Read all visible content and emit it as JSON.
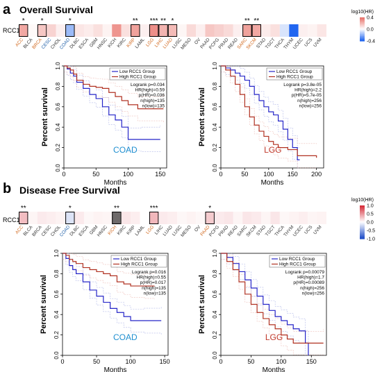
{
  "panels": [
    {
      "letter": "a",
      "title": "Overall Survival",
      "row_label": "RCC1",
      "legend": {
        "title": "log10(HR)",
        "ticks": [
          "0.4",
          "0.0",
          "-0.4"
        ],
        "colors": {
          "high": "#e8736b",
          "mid": "#ffffff",
          "low": "#2166f0"
        }
      },
      "cancers": [
        "ACC",
        "BLCA",
        "BRCA",
        "CESC",
        "CHOL",
        "COAD",
        "DLBC",
        "ESCA",
        "GBM",
        "HNSC",
        "KICH",
        "KIRC",
        "KIRP",
        "LAML",
        "LGG",
        "LIHC",
        "LUAD",
        "LUSC",
        "MESO",
        "OV",
        "PAAD",
        "PCPG",
        "PRAD",
        "READ",
        "SARC",
        "SKCM",
        "STAD",
        "TGCT",
        "THCA",
        "THYM",
        "UCEC",
        "UCS",
        "UVM"
      ],
      "log10_hr": [
        0.28,
        0.02,
        0.18,
        0.14,
        0.05,
        -0.2,
        0.08,
        0.06,
        0.1,
        0.04,
        0.34,
        0.1,
        0.3,
        0.05,
        0.36,
        0.24,
        0.22,
        0.03,
        0.12,
        0.05,
        0.18,
        0.15,
        0.12,
        0.05,
        0.3,
        0.28,
        0.06,
        0.1,
        -0.08,
        -0.45,
        0.05,
        0.04,
        0.08
      ],
      "stars": [
        "*",
        "",
        "*",
        "",
        "",
        "*",
        "",
        "",
        "",
        "",
        "",
        "",
        "**",
        "",
        "***",
        "**",
        "*",
        "",
        "",
        "",
        "",
        "",
        "",
        "",
        "**",
        "**",
        "",
        "",
        "",
        "",
        "",
        "",
        ""
      ],
      "boxed": [
        "ACC",
        "BRCA",
        "COAD",
        "KIRP",
        "LGG",
        "LIHC",
        "LUAD",
        "SARC",
        "SKCM"
      ],
      "orange_labels": [
        "ACC",
        "BRCA",
        "KIRP",
        "LGG",
        "LIHC",
        "LUAD",
        "SARC",
        "SKCM"
      ],
      "blue_labels": [
        "CESC",
        "COAD"
      ],
      "km": [
        {
          "cancer": "COAD",
          "legend_low": "Low RCC1 Group",
          "legend_high": "High RCC1 Group",
          "stats": [
            "Logrank p=0.034",
            "HR(high)=0.59",
            "p(HR)=0.036",
            "n(high)=135",
            "n(low)=135"
          ],
          "xlabel": "Months",
          "ylabel": "Percent survival",
          "xticks": [
            0,
            50,
            100,
            150
          ],
          "yticks": [
            0.0,
            0.2,
            0.4,
            0.6,
            0.8,
            1.0
          ],
          "xmax": 160,
          "low_curve": [
            [
              0,
              1
            ],
            [
              5,
              0.97
            ],
            [
              10,
              0.93
            ],
            [
              15,
              0.9
            ],
            [
              20,
              0.84
            ],
            [
              30,
              0.78
            ],
            [
              40,
              0.72
            ],
            [
              50,
              0.68
            ],
            [
              60,
              0.6
            ],
            [
              70,
              0.52
            ],
            [
              80,
              0.47
            ],
            [
              90,
              0.4
            ],
            [
              100,
              0.28
            ],
            [
              120,
              0.28
            ],
            [
              150,
              0.28
            ]
          ],
          "high_curve": [
            [
              0,
              1
            ],
            [
              5,
              0.98
            ],
            [
              10,
              0.96
            ],
            [
              15,
              0.92
            ],
            [
              20,
              0.86
            ],
            [
              30,
              0.82
            ],
            [
              40,
              0.8
            ],
            [
              50,
              0.79
            ],
            [
              60,
              0.78
            ],
            [
              70,
              0.74
            ],
            [
              80,
              0.7
            ],
            [
              90,
              0.66
            ],
            [
              100,
              0.62
            ],
            [
              115,
              0.58
            ],
            [
              155,
              0.58
            ]
          ]
        },
        {
          "cancer": "LGG",
          "legend_low": "Low RCC1 Group",
          "legend_high": "High RCC1 Group",
          "stats": [
            "Logrank p=3.8e-05",
            "HR(high)=2.2",
            "p(HR)=5.7e-05",
            "n(high)=256",
            "n(low)=256"
          ],
          "xlabel": "Months",
          "ylabel": "Percent survival",
          "xticks": [
            0,
            50,
            100,
            150,
            200
          ],
          "yticks": [
            0.0,
            0.2,
            0.4,
            0.6,
            0.8,
            1.0
          ],
          "xmax": 215,
          "low_curve": [
            [
              0,
              1
            ],
            [
              10,
              0.98
            ],
            [
              20,
              0.96
            ],
            [
              30,
              0.93
            ],
            [
              40,
              0.9
            ],
            [
              50,
              0.86
            ],
            [
              60,
              0.8
            ],
            [
              70,
              0.72
            ],
            [
              80,
              0.66
            ],
            [
              90,
              0.6
            ],
            [
              100,
              0.55
            ],
            [
              110,
              0.52
            ],
            [
              120,
              0.46
            ],
            [
              130,
              0.38
            ],
            [
              140,
              0.28
            ],
            [
              150,
              0.2
            ],
            [
              160,
              0.08
            ],
            [
              165,
              0.08
            ]
          ],
          "high_curve": [
            [
              0,
              1
            ],
            [
              10,
              0.96
            ],
            [
              20,
              0.9
            ],
            [
              30,
              0.82
            ],
            [
              40,
              0.72
            ],
            [
              50,
              0.6
            ],
            [
              60,
              0.5
            ],
            [
              70,
              0.42
            ],
            [
              80,
              0.36
            ],
            [
              90,
              0.31
            ],
            [
              100,
              0.26
            ],
            [
              110,
              0.23
            ],
            [
              120,
              0.2
            ],
            [
              140,
              0.18
            ],
            [
              160,
              0.12
            ],
            [
              200,
              0.1
            ]
          ]
        }
      ]
    },
    {
      "letter": "b",
      "title": "Disease Free Survival",
      "row_label": "RCC1",
      "legend": {
        "title": "log10(HR)",
        "ticks": [
          "1.0",
          "0.5",
          "0.0",
          "-0.5",
          "-1.0"
        ],
        "colors": {
          "high": "#d6303c",
          "mid": "#ffffff",
          "low": "#2250c8"
        }
      },
      "cancers": [
        "ACC",
        "BLCA",
        "BRCA",
        "CESC",
        "CHOL",
        "COAD",
        "DLBC",
        "ESCA",
        "GBM",
        "HNSC",
        "KICH",
        "KIRC",
        "KIRP",
        "LAML",
        "LGG",
        "LIHC",
        "LUAD",
        "LUSC",
        "MESO",
        "OV",
        "PAAD",
        "PCPG",
        "PRAD",
        "READ",
        "SARC",
        "SKCM",
        "STAD",
        "TGCT",
        "THCA",
        "THYM",
        "UCEC",
        "UCS",
        "UVM"
      ],
      "log10_hr": [
        0.32,
        0.05,
        0.1,
        0.08,
        0.06,
        -0.16,
        0.1,
        0.04,
        0.06,
        0.05,
        1.0,
        0.12,
        0.08,
        0.0,
        0.35,
        0.1,
        0.08,
        0.04,
        0.06,
        0.04,
        0.25,
        0.1,
        0.12,
        0.05,
        0.12,
        0.1,
        0.05,
        0.12,
        0.04,
        0.06,
        0.08,
        0.05,
        0.06
      ],
      "stars": [
        "**",
        "",
        "",
        "",
        "",
        "*",
        "",
        "",
        "",
        "",
        "**",
        "",
        "",
        "",
        "***",
        "",
        "",
        "",
        "",
        "",
        "*",
        "",
        "",
        "",
        "",
        "",
        "",
        "",
        "",
        "",
        "",
        "",
        ""
      ],
      "boxed": [
        "ACC",
        "COAD",
        "KICH",
        "LGG",
        "PAAD"
      ],
      "orange_labels": [
        "ACC",
        "KICH",
        "LGG",
        "PAAD"
      ],
      "blue_labels": [
        "COAD"
      ],
      "km": [
        {
          "cancer": "COAD",
          "legend_low": "Low RCC1 Group",
          "legend_high": "High RCC1 Group",
          "stats": [
            "Logrank p=0.016",
            "HR(high)=0.55",
            "p(HR)=0.017",
            "n(high)=135",
            "n(low)=135"
          ],
          "xlabel": "Months",
          "ylabel": "Percent survival",
          "xticks": [
            0,
            50,
            100,
            150
          ],
          "yticks": [
            0.0,
            0.2,
            0.4,
            0.6,
            0.8,
            1.0
          ],
          "xmax": 155,
          "low_curve": [
            [
              0,
              1
            ],
            [
              5,
              0.95
            ],
            [
              10,
              0.88
            ],
            [
              15,
              0.84
            ],
            [
              20,
              0.8
            ],
            [
              30,
              0.72
            ],
            [
              40,
              0.64
            ],
            [
              50,
              0.58
            ],
            [
              60,
              0.52
            ],
            [
              70,
              0.46
            ],
            [
              80,
              0.42
            ],
            [
              90,
              0.38
            ],
            [
              100,
              0.34
            ],
            [
              120,
              0.34
            ],
            [
              145,
              0.34
            ]
          ],
          "high_curve": [
            [
              0,
              1
            ],
            [
              5,
              0.98
            ],
            [
              10,
              0.94
            ],
            [
              15,
              0.92
            ],
            [
              20,
              0.9
            ],
            [
              30,
              0.86
            ],
            [
              40,
              0.84
            ],
            [
              50,
              0.82
            ],
            [
              60,
              0.8
            ],
            [
              70,
              0.78
            ],
            [
              80,
              0.72
            ],
            [
              90,
              0.7
            ],
            [
              100,
              0.68
            ],
            [
              120,
              0.68
            ],
            [
              135,
              0.68
            ]
          ]
        },
        {
          "cancer": "LGG",
          "legend_low": "Low RCC1 Group",
          "legend_high": "High RCC1 Group",
          "stats": [
            "Logrank p=0.00079",
            "HR(high)=1.7",
            "p(HR)=0.00089",
            "n(high)=256",
            "n(low)=256"
          ],
          "xlabel": "Months",
          "ylabel": "Percent survival",
          "xticks": [
            0,
            50,
            100,
            150
          ],
          "yticks": [
            0.0,
            0.2,
            0.4,
            0.6,
            0.8,
            1.0
          ],
          "xmax": 175,
          "low_curve": [
            [
              0,
              1
            ],
            [
              10,
              0.96
            ],
            [
              20,
              0.9
            ],
            [
              30,
              0.82
            ],
            [
              40,
              0.74
            ],
            [
              50,
              0.66
            ],
            [
              60,
              0.58
            ],
            [
              70,
              0.5
            ],
            [
              80,
              0.44
            ],
            [
              90,
              0.38
            ],
            [
              100,
              0.34
            ],
            [
              110,
              0.3
            ],
            [
              120,
              0.26
            ],
            [
              130,
              0.24
            ],
            [
              140,
              0.12
            ],
            [
              145,
              0.0
            ]
          ],
          "high_curve": [
            [
              0,
              1
            ],
            [
              10,
              0.92
            ],
            [
              20,
              0.84
            ],
            [
              30,
              0.72
            ],
            [
              40,
              0.6
            ],
            [
              50,
              0.5
            ],
            [
              60,
              0.42
            ],
            [
              70,
              0.36
            ],
            [
              80,
              0.3
            ],
            [
              90,
              0.26
            ],
            [
              100,
              0.2
            ],
            [
              110,
              0.16
            ],
            [
              120,
              0.12
            ],
            [
              170,
              0.12
            ]
          ]
        }
      ]
    }
  ]
}
